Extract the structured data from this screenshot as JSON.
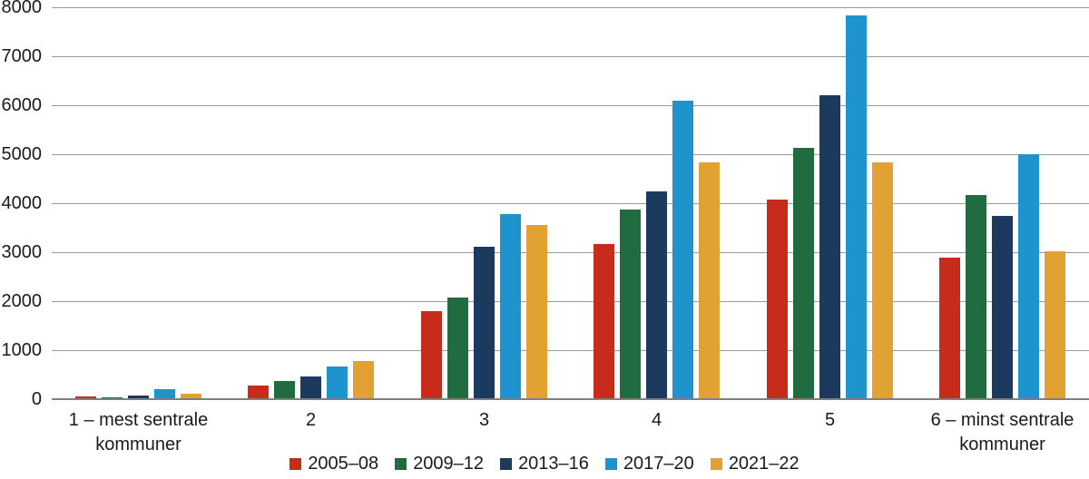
{
  "chart_data": {
    "type": "bar",
    "title": "",
    "xlabel": "",
    "ylabel": "",
    "categories": [
      "1 – mest sentrale kommuner",
      "2",
      "3",
      "4",
      "5",
      "6 – minst sentrale kommuner"
    ],
    "series": [
      {
        "name": "2005–08",
        "color": "#c62b1c",
        "values": [
          40,
          250,
          1770,
          3150,
          4050,
          2870
        ]
      },
      {
        "name": "2009–12",
        "color": "#206b40",
        "values": [
          15,
          345,
          2060,
          3850,
          5120,
          4150
        ]
      },
      {
        "name": "2013–16",
        "color": "#1c3a5e",
        "values": [
          60,
          445,
          3090,
          4230,
          6190,
          3720
        ]
      },
      {
        "name": "2017–20",
        "color": "#1e93cd",
        "values": [
          180,
          650,
          3750,
          6070,
          7820,
          4980
        ]
      },
      {
        "name": "2021–22",
        "color": "#e2a233",
        "values": [
          85,
          765,
          3530,
          4810,
          4820,
          3000
        ]
      }
    ],
    "y_ticks": [
      0,
      1000,
      2000,
      3000,
      4000,
      5000,
      6000,
      7000,
      8000
    ],
    "ylim": [
      0,
      8000
    ],
    "grid": true,
    "legend_position": "bottom"
  },
  "style_colors": {
    "gridline": "#9b9b9b",
    "axis_line": "#7f7f7f",
    "text": "#1a1a1a",
    "background": "#ffffff"
  }
}
